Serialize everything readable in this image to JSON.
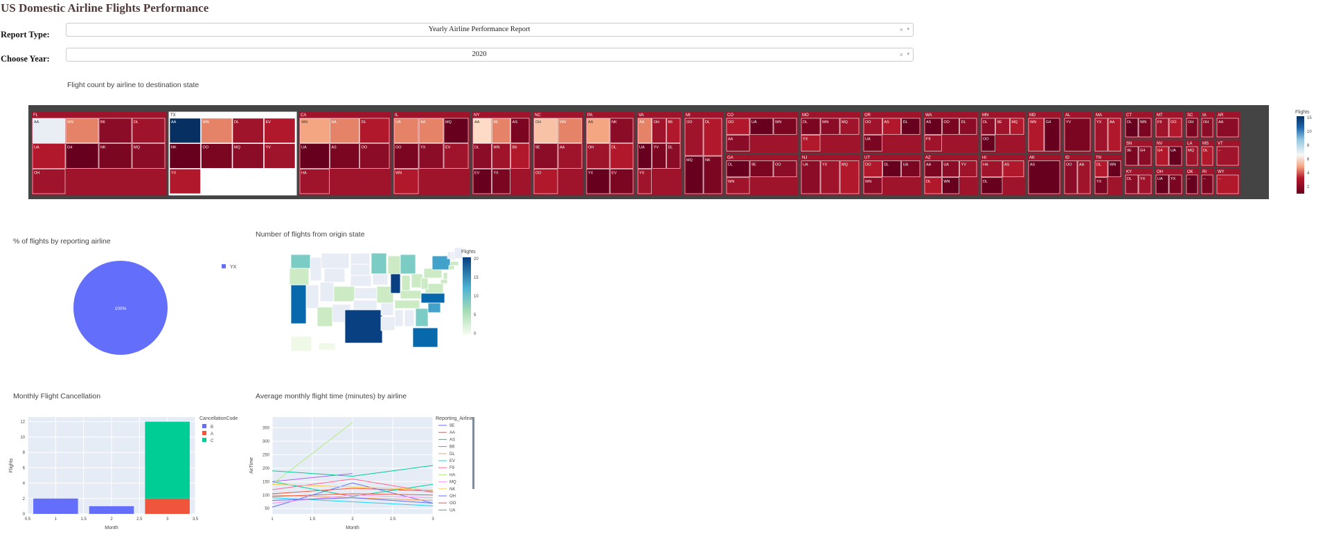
{
  "page": {
    "title": "US Domestic Airline Flights Performance"
  },
  "controls": {
    "report_label": "Report Type:",
    "report_value": "Yearly Airline Performance Report",
    "year_label": "Choose Year:",
    "year_value": "2020",
    "clear_glyph": "×",
    "arrow_glyph": "▾"
  },
  "colors": {
    "pie": "#636efa",
    "bar_B": "#636efa",
    "bar_A": "#ef553b",
    "bar_C": "#00cc96",
    "plot_bg": "#e5ecf6"
  },
  "charts": {
    "treemap": {
      "title": "Flight count by airline to destination state",
      "colorbar_title": "Flights",
      "colorbar_ticks": [
        "15",
        "10",
        "8",
        "6",
        "4",
        "2"
      ],
      "chart_data": {
        "type": "treemap",
        "path": [
          "state",
          "airline"
        ],
        "states": [
          {
            "name": "FL",
            "airlines": [
              "AA",
              "WN",
              "B6",
              "DL",
              "UA",
              "G4",
              "NK",
              "MQ",
              "OH"
            ]
          },
          {
            "name": "TX",
            "airlines": [
              "AA",
              "WN",
              "DL",
              "EV",
              "NK",
              "OO",
              "MQ",
              "YV",
              "YX"
            ]
          },
          {
            "name": "CA",
            "airlines": [
              "WN",
              "AA",
              "DL",
              "UA",
              "AS",
              "OO",
              "HA"
            ]
          },
          {
            "name": "IL",
            "airlines": [
              "UA",
              "AA",
              "MQ",
              "OO",
              "YX",
              "EV",
              "WN"
            ]
          },
          {
            "name": "NY",
            "airlines": [
              "AA",
              "9E",
              "AS",
              "DL",
              "WN",
              "B6",
              "EV",
              "YX"
            ]
          },
          {
            "name": "NC",
            "airlines": [
              "OH",
              "WN",
              "9E",
              "AA",
              "OO"
            ]
          },
          {
            "name": "PA",
            "airlines": [
              "AA",
              "NK",
              "OH",
              "DL",
              "YX",
              "EV"
            ]
          },
          {
            "name": "VA",
            "airlines": [
              "AA",
              "OH",
              "B6",
              "UA",
              "YV",
              "DL",
              "YX"
            ]
          },
          {
            "name": "MI",
            "airlines": [
              "OO",
              "DL",
              "MQ",
              "NK"
            ]
          },
          {
            "name": "CO",
            "airlines": [
              "OO",
              "UA",
              "WN",
              "AA"
            ]
          },
          {
            "name": "GA",
            "airlines": [
              "DL",
              "9E",
              "OO",
              "WN"
            ]
          },
          {
            "name": "MO",
            "airlines": [
              "DL",
              "WN",
              "MQ",
              "YX"
            ]
          },
          {
            "name": "NJ",
            "airlines": [
              "UA",
              "YX",
              "MQ"
            ]
          },
          {
            "name": "OR",
            "airlines": [
              "OO",
              "AS",
              "DL",
              "UA"
            ]
          },
          {
            "name": "UT",
            "airlines": [
              "OO",
              "DL",
              "UA",
              "WN"
            ]
          },
          {
            "name": "WA",
            "airlines": [
              "AS",
              "OO",
              "DL",
              "F9"
            ]
          },
          {
            "name": "AZ",
            "airlines": [
              "AA",
              "UA",
              "YV",
              "DL",
              "WN"
            ]
          },
          {
            "name": "MN",
            "airlines": [
              "DL",
              "9E",
              "MQ",
              "OO"
            ]
          },
          {
            "name": "HI",
            "airlines": [
              "HA",
              "AS",
              "DL"
            ]
          },
          {
            "name": "MD",
            "airlines": [
              "WN",
              "G4"
            ]
          },
          {
            "name": "AK",
            "airlines": [
              "AS"
            ]
          },
          {
            "name": "AL",
            "airlines": [
              "YV"
            ]
          },
          {
            "name": "ID",
            "airlines": [
              "OO",
              "AA"
            ]
          },
          {
            "name": "MA",
            "airlines": [
              "YX",
              "AA"
            ]
          },
          {
            "name": "TN",
            "airlines": [
              "DL",
              "WN",
              "YX"
            ]
          },
          {
            "name": "CT",
            "airlines": [
              "DL",
              "WN"
            ]
          },
          {
            "name": "SN",
            "airlines": [
              "9E",
              "G4"
            ]
          },
          {
            "name": "KY",
            "airlines": [
              "DL",
              "YX"
            ]
          },
          {
            "name": "MT",
            "airlines": [
              "F9",
              "OO"
            ]
          },
          {
            "name": "NV",
            "airlines": [
              "G4",
              "UA"
            ]
          },
          {
            "name": "OH",
            "airlines": [
              "UA",
              "YX"
            ]
          },
          {
            "name": "SC",
            "airlines": [
              "OH"
            ]
          },
          {
            "name": "IA",
            "airlines": [
              "OH"
            ]
          },
          {
            "name": "LA",
            "airlines": [
              "MQ"
            ]
          },
          {
            "name": "MS",
            "airlines": [
              "DL"
            ]
          },
          {
            "name": "OK",
            "airlines": [
              "--"
            ]
          },
          {
            "name": "RI",
            "airlines": [
              "--"
            ]
          },
          {
            "name": "AR",
            "airlines": [
              "AA"
            ]
          },
          {
            "name": "VT",
            "airlines": [
              "--"
            ]
          },
          {
            "name": "WY",
            "airlines": [
              "--"
            ]
          }
        ],
        "color_range": [
          1,
          15
        ]
      }
    },
    "pie": {
      "title": "% of flights by reporting airline",
      "chart_data": {
        "type": "pie",
        "labels": [
          "YX"
        ],
        "values": [
          100
        ],
        "text": [
          "100%"
        ]
      }
    },
    "map": {
      "title": "Number of flights from origin state",
      "colorbar_title": "Flights",
      "colorbar_ticks": [
        "20",
        "15",
        "10",
        "5",
        "0"
      ],
      "chart_data": {
        "type": "choropleth",
        "locationmode": "USA-states",
        "range": [
          0,
          20
        ],
        "values": {
          "TX": 20,
          "CA": 16,
          "FL": 14,
          "IL": 18,
          "NC": 16,
          "WA": 8,
          "NY": 10,
          "GA": 6,
          "CO": 4,
          "MI": 6,
          "MN": 6,
          "PA": 4,
          "VA": 5,
          "SC": 12
        }
      }
    },
    "cancellation": {
      "title": "Monthly Flight Cancellation",
      "legend_title": "CancellationCode",
      "xlabel": "Month",
      "ylabel": "Flights",
      "xticks": [
        "0.5",
        "1",
        "1.5",
        "2",
        "2.5",
        "3",
        "3.5"
      ],
      "yticks": [
        "0",
        "2",
        "4",
        "6",
        "8",
        "10",
        "12"
      ],
      "chart_data": {
        "type": "bar",
        "barmode": "stack",
        "categories": [
          1,
          2,
          3
        ],
        "series": [
          {
            "name": "B",
            "values": [
              2,
              1,
              0
            ]
          },
          {
            "name": "A",
            "values": [
              0,
              0,
              2
            ]
          },
          {
            "name": "C",
            "values": [
              0,
              0,
              10
            ]
          }
        ],
        "xlim": [
          0.5,
          3.5
        ],
        "ylim": [
          0,
          12.6
        ]
      }
    },
    "airtime": {
      "title": "Average monthly flight time (minutes) by airline",
      "legend_title": "Reporting_Airline",
      "xlabel": "Month",
      "ylabel": "AirTime",
      "xticks": [
        "1",
        "1.5",
        "2",
        "2.5",
        "3"
      ],
      "yticks": [
        "50",
        "100",
        "150",
        "200",
        "250",
        "300",
        "350"
      ],
      "chart_data": {
        "type": "line",
        "x": [
          1,
          2,
          3
        ],
        "xlim": [
          1,
          3
        ],
        "ylim": [
          30,
          390
        ],
        "series": [
          {
            "name": "9E",
            "color": "#636efa",
            "values": [
              55,
              145,
              70
            ]
          },
          {
            "name": "AA",
            "color": "#ef553b",
            "values": [
              105,
              125,
              115
            ]
          },
          {
            "name": "AS",
            "color": "#00cc96",
            "values": [
              150,
              95,
              140
            ]
          },
          {
            "name": "B6",
            "color": "#ab63fa",
            "values": [
              150,
              180,
              null
            ]
          },
          {
            "name": "DL",
            "color": "#ffa15a",
            "values": [
              100,
              90,
              80
            ]
          },
          {
            "name": "EV",
            "color": "#19d3f3",
            "values": [
              90,
              75,
              60
            ]
          },
          {
            "name": "F9",
            "color": "#ff6692",
            "values": [
              120,
              160,
              110
            ]
          },
          {
            "name": "HA",
            "color": "#b6e880",
            "values": [
              140,
              370,
              null
            ]
          },
          {
            "name": "MQ",
            "color": "#ff97ff",
            "values": [
              70,
              100,
              90
            ]
          },
          {
            "name": "NK",
            "color": "#fecb52",
            "values": [
              140,
              130,
              120
            ]
          },
          {
            "name": "OH",
            "color": "#636efa",
            "values": [
              80,
              90,
              70
            ]
          },
          {
            "name": "OO",
            "color": "#ef553b",
            "values": [
              95,
              105,
              100
            ]
          },
          {
            "name": "UA",
            "color": "#00cc96",
            "values": [
              190,
              170,
              210
            ]
          }
        ]
      }
    }
  }
}
